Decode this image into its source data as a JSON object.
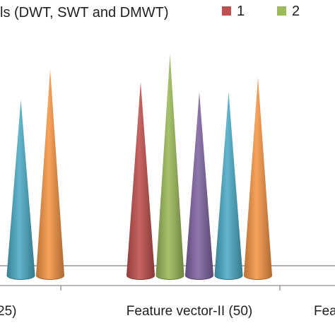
{
  "chart_data": {
    "type": "bar",
    "title": "ls (DWT, SWT and DMWT)",
    "categories": [
      "25)",
      "Feature vector-II (50)",
      "Fea"
    ],
    "series": [
      {
        "name": "1",
        "color": "#C0504D"
      },
      {
        "name": "2",
        "color": "#9BBB59"
      },
      {
        "name": "",
        "color": "#8064A2"
      },
      {
        "name": "",
        "color": "#4BACC6"
      },
      {
        "name": "",
        "color": "#F79646"
      }
    ],
    "visible_cones": [
      {
        "category": 0,
        "series": 3,
        "value": 0.69
      },
      {
        "category": 0,
        "series": 4,
        "value": 0.81
      },
      {
        "category": 1,
        "series": 0,
        "value": 0.76
      },
      {
        "category": 1,
        "series": 1,
        "value": 0.87
      },
      {
        "category": 1,
        "series": 2,
        "value": 0.72
      },
      {
        "category": 1,
        "series": 3,
        "value": 0.72
      },
      {
        "category": 1,
        "series": 4,
        "value": 0.78
      }
    ],
    "ylim": [
      0,
      1
    ],
    "grid": false,
    "legend": "top-right"
  }
}
